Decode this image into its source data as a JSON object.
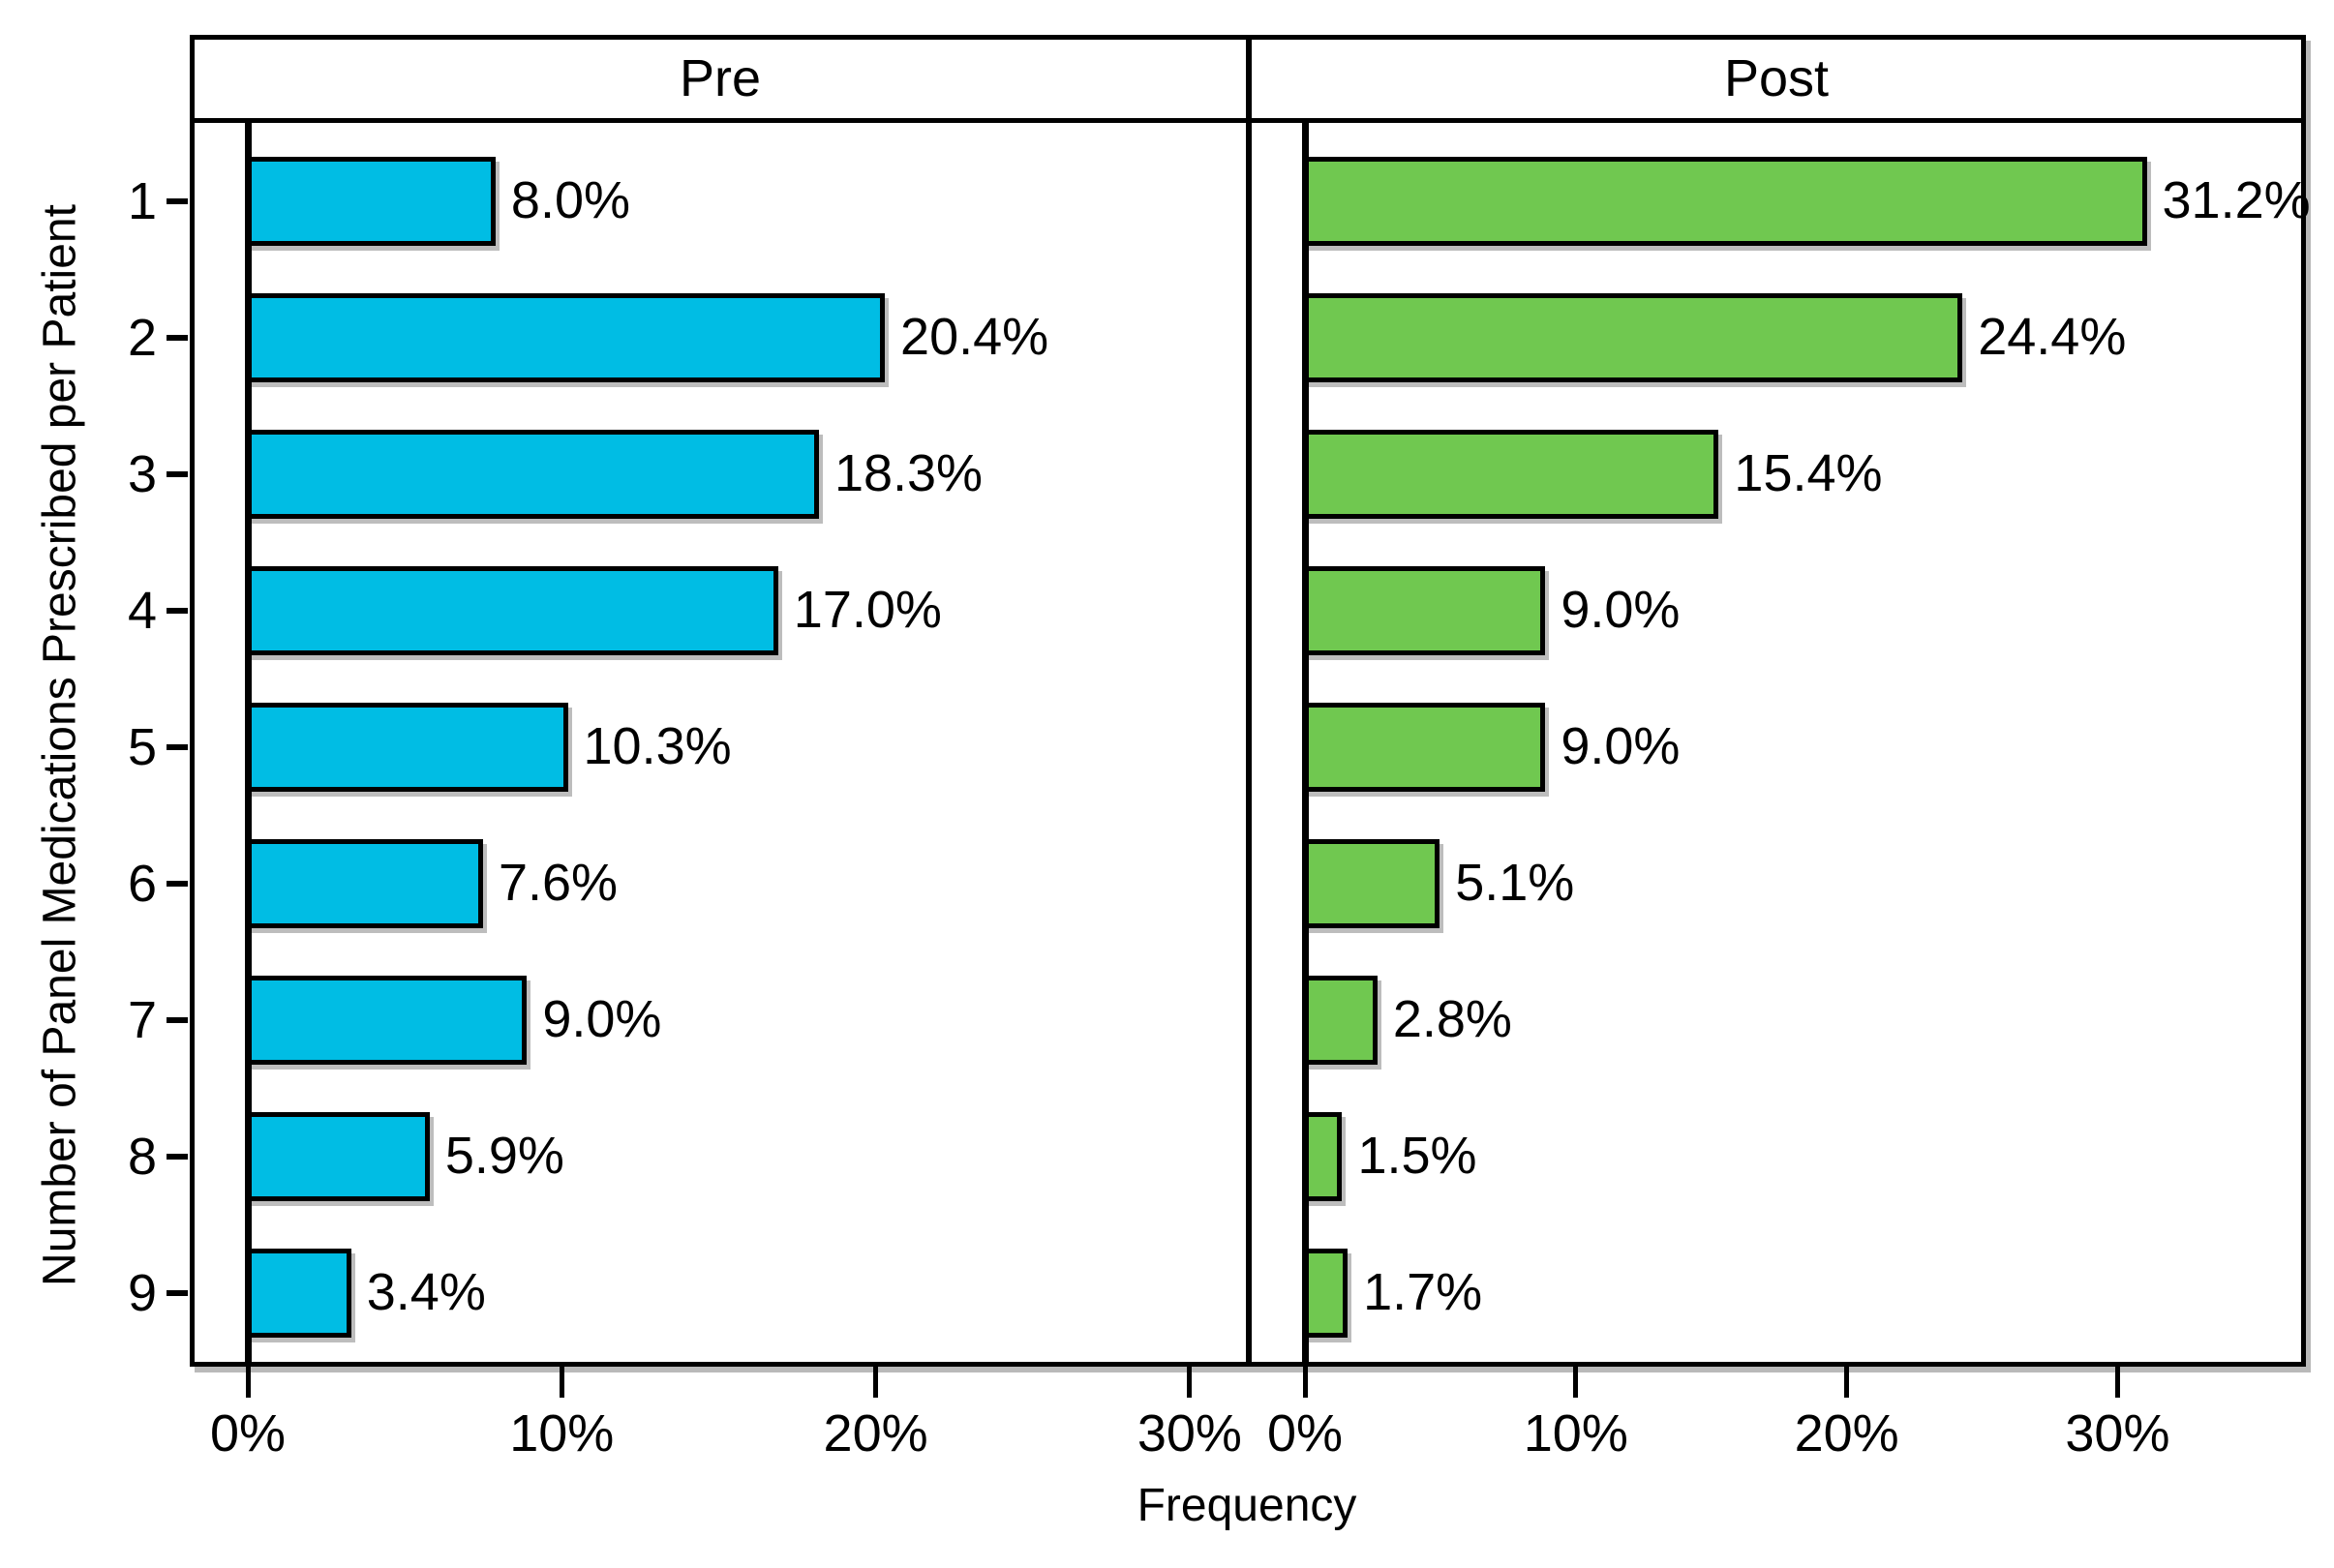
{
  "chart_data": {
    "type": "bar",
    "orientation": "horizontal",
    "facets": [
      "Pre",
      "Post"
    ],
    "categories": [
      "1",
      "2",
      "3",
      "4",
      "5",
      "6",
      "7",
      "8",
      "9"
    ],
    "series": [
      {
        "name": "Pre",
        "bar_color": "#00BDE4",
        "values": [
          8.0,
          20.4,
          18.3,
          17.0,
          10.3,
          7.6,
          9.0,
          5.9,
          3.4
        ],
        "value_labels": [
          "8.0%",
          "20.4%",
          "18.3%",
          "17.0%",
          "10.3%",
          "7.6%",
          "9.0%",
          "5.9%",
          "3.4%"
        ],
        "x_tick_values": [
          0,
          10,
          20,
          30
        ],
        "x_tick_labels": [
          "0%",
          "10%",
          "20%",
          "30%"
        ],
        "x_max": 31.9
      },
      {
        "name": "Post",
        "bar_color": "#70C850",
        "values": [
          31.2,
          24.4,
          15.4,
          9.0,
          9.0,
          5.1,
          2.8,
          1.5,
          1.7
        ],
        "value_labels": [
          "31.2%",
          "24.4%",
          "15.4%",
          "9.0%",
          "9.0%",
          "5.1%",
          "2.8%",
          "1.5%",
          "1.7%"
        ],
        "x_tick_values": [
          0,
          10,
          20,
          30
        ],
        "x_tick_labels": [
          "0%",
          "10%",
          "20%",
          "30%"
        ],
        "x_max": 36.9
      }
    ],
    "xlabel": "Frequency",
    "ylabel": "Number of Panel Medications Prescribed per Patient",
    "grid": false,
    "legend_position": "none",
    "bar_border_color": "#000000",
    "frame_color": "#000000",
    "background": "#FFFFFF"
  }
}
